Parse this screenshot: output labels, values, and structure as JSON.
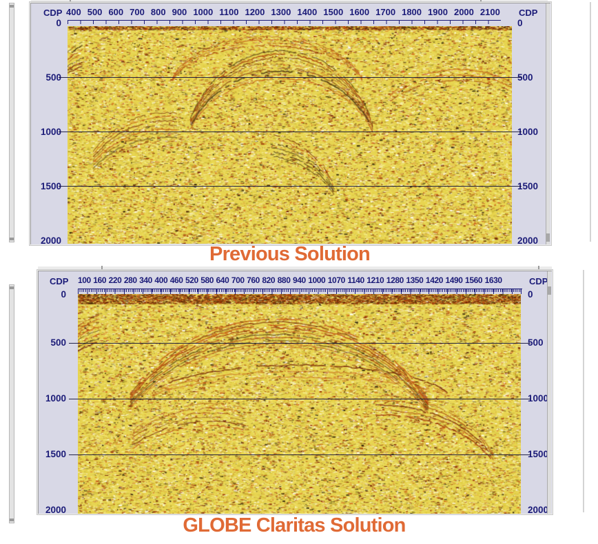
{
  "chart_data": [
    {
      "type": "heatmap",
      "subtype": "seismic-amplitude-section",
      "variant": "previous",
      "title": "Previous Solution",
      "x_axis_label": "CDP",
      "x_axis_label_right": "CDP",
      "x_tick_labels": [
        "400",
        "500",
        "600",
        "700",
        "800",
        "900",
        "1000",
        "1100",
        "1200",
        "1300",
        "1400",
        "1500",
        "1600",
        "1700",
        "1800",
        "1900",
        "2000",
        "2100"
      ],
      "x_range": [
        400,
        2150
      ],
      "y_tick_labels": [
        "0",
        "500",
        "1000",
        "1500",
        "2000"
      ],
      "y_tick_values": [
        0,
        500,
        1000,
        1500,
        2000
      ],
      "y_range": [
        0,
        2000
      ],
      "y_gridlines": [
        500,
        1000,
        1500
      ],
      "grid": "horizontal",
      "legend": "none"
    },
    {
      "type": "heatmap",
      "subtype": "seismic-amplitude-section",
      "variant": "claritas",
      "title": "GLOBE Claritas Solution",
      "x_axis_label": "CDP",
      "x_axis_label_right": "CDP",
      "x_tick_labels": [
        "100",
        "160",
        "220",
        "280",
        "340",
        "400",
        "460",
        "520",
        "580",
        "640",
        "700",
        "760",
        "820",
        "880",
        "940",
        "1000",
        "1070",
        "1140",
        "1210",
        "1280",
        "1350",
        "1420",
        "1490",
        "1560",
        "1630"
      ],
      "x_range": [
        100,
        1660
      ],
      "y_tick_labels": [
        "0",
        "500",
        "1000",
        "1500",
        "2000"
      ],
      "y_tick_values": [
        0,
        500,
        1000,
        1500,
        2000
      ],
      "y_range": [
        0,
        2000
      ],
      "y_gridlines": [
        500,
        1000,
        1500
      ],
      "grid": "horizontal",
      "legend": "none"
    }
  ],
  "colors": {
    "page_background": "#FFFFFF",
    "caption_orange": "#E06A35",
    "panel_background": "#D8D8E6",
    "window_chrome": "#ECECEC",
    "window_border": "#9A9A9A",
    "axis_text_navy": "#1B1B78",
    "grid_line": "#14143C"
  },
  "texture": {
    "base": "#E7D452",
    "palette": [
      {
        "color": "#EBD94F",
        "w": 0.26
      },
      {
        "color": "#DCC83C",
        "w": 0.14
      },
      {
        "color": "#F4EC85",
        "w": 0.14
      },
      {
        "color": "#F8F3C9",
        "w": 0.08
      },
      {
        "color": "#FFFFFF",
        "w": 0.06
      },
      {
        "color": "#B9A62F",
        "w": 0.09
      },
      {
        "color": "#D2691E",
        "w": 0.08
      },
      {
        "color": "#A03808",
        "w": 0.06
      },
      {
        "color": "#6E1B03",
        "w": 0.05
      },
      {
        "color": "#2A1F08",
        "w": 0.04
      }
    ],
    "event_colors": [
      "#701D02",
      "#A33A08",
      "#C14F10",
      "#3A2406"
    ]
  }
}
